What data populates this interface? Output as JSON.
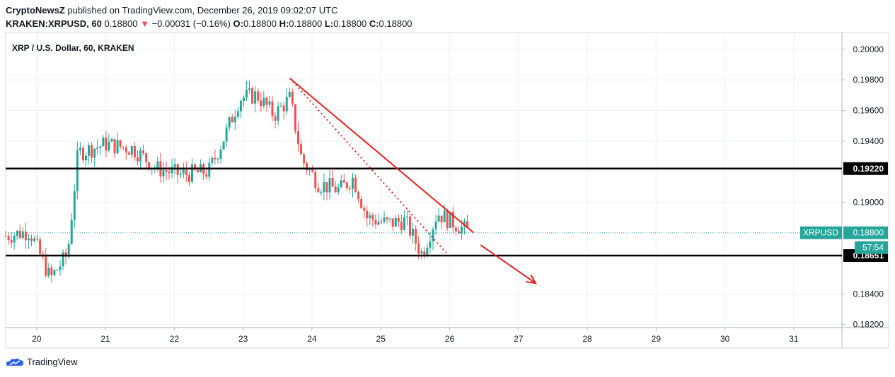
{
  "header": {
    "publisher": "CryptoNewsZ",
    "published_text": " published on TradingView.com, December 26, 2019 09:02:07 UTC",
    "symbol_line": "KRAKEN:XRPUSD, 60",
    "last": "0.18800",
    "arrow": "▼",
    "change": "−0.00031 (−0.16%)",
    "o_label": "O:",
    "o": "0.18800",
    "h_label": "H:",
    "h": "0.18800",
    "l_label": "L:",
    "l": "0.18800",
    "c_label": "C:",
    "c": "0.18800"
  },
  "brand": {
    "label": "TradingView"
  },
  "colors": {
    "up": "#26a69a",
    "down": "#ef5350",
    "drawing": "#e8231e",
    "level": "#000000",
    "price_line": "#26a69a"
  },
  "chart_data": {
    "type": "candlestick",
    "title": "XRP / U.S. Dollar, 60, KRAKEN",
    "symbol": "XRPUSD",
    "interval": "60",
    "y_ticks": [
      "0.20000",
      "0.19800",
      "0.19600",
      "0.19400",
      "0.19200",
      "0.19000",
      "0.18400",
      "0.18200"
    ],
    "x_ticks": [
      "20",
      "21",
      "22",
      "23",
      "24",
      "25",
      "26",
      "27",
      "28",
      "29",
      "30",
      "31"
    ],
    "x_range": [
      19.55,
      31.7
    ],
    "y_range": [
      0.1818,
      0.2011
    ],
    "horizontal_levels": [
      {
        "value": 0.1922,
        "label": "0.19220"
      },
      {
        "value": 0.18651,
        "label": "0.18651"
      }
    ],
    "current_price": {
      "value": 0.188,
      "label": "0.18800",
      "symbol_label": "XRPUSD",
      "countdown": "57:54"
    },
    "trendline_solid": {
      "x": [
        23.68,
        26.35
      ],
      "y": [
        0.1981,
        0.188
      ]
    },
    "trendline_dotted": {
      "x": [
        23.68,
        25.95
      ],
      "y": [
        0.1981,
        0.1867
      ]
    },
    "forecast_arrow": {
      "x": [
        26.45,
        27.25
      ],
      "y": [
        0.1872,
        0.1847
      ]
    },
    "anchors": {
      "x": [
        19.55,
        19.9,
        20.2,
        20.45,
        20.6,
        21.0,
        21.4,
        21.75,
        22.1,
        22.5,
        22.75,
        22.95,
        23.2,
        23.45,
        23.68,
        23.85,
        24.1,
        24.4,
        24.6,
        24.8,
        25.1,
        25.35,
        25.6,
        25.82,
        26.0,
        26.3
      ],
      "y": [
        0.1878,
        0.1881,
        0.185,
        0.1866,
        0.1932,
        0.1938,
        0.1935,
        0.1922,
        0.1918,
        0.192,
        0.1945,
        0.1968,
        0.197,
        0.1957,
        0.1968,
        0.1928,
        0.1912,
        0.1908,
        0.1916,
        0.189,
        0.1886,
        0.1888,
        0.1866,
        0.1893,
        0.1888,
        0.188
      ]
    }
  }
}
